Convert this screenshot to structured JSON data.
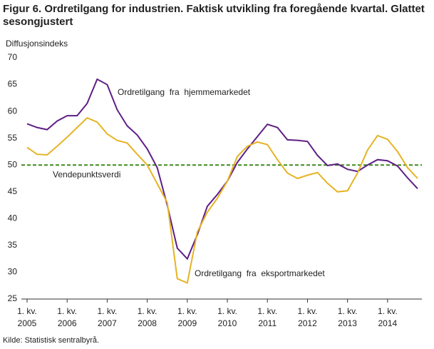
{
  "chart_data": {
    "type": "line",
    "title": "Figur 6. Ordretilgang for industrien. Faktisk utvikling fra foregående kvartal. Glattet sesongjustert",
    "y_label": "Diffusjonsindeks",
    "source": "Kilde: Statistisk sentralbyrå.",
    "categories": [
      "1. kv.\n2005",
      null,
      null,
      null,
      "1. kv.\n2006",
      null,
      null,
      null,
      "1. kv.\n2007",
      null,
      null,
      null,
      "1. kv.\n2008",
      null,
      null,
      null,
      "1. kv.\n2009",
      null,
      null,
      null,
      "1. kv.\n2010",
      null,
      null,
      null,
      "1. kv.\n2011",
      null,
      null,
      null,
      "1. kv.\n2012",
      null,
      null,
      null,
      "1. kv.\n2013",
      null,
      null,
      null,
      "1. kv.\n2014",
      null,
      null,
      null
    ],
    "series": [
      {
        "name": "Ordretilgang  fra  hjemmemarkedet",
        "color": "#5e1f86",
        "values": [
          57.7,
          57.0,
          56.6,
          58.2,
          59.2,
          59.2,
          61.5,
          66.0,
          65.0,
          60.3,
          57.3,
          55.6,
          53.0,
          49.5,
          42.5,
          34.5,
          32.5,
          37.0,
          42.3,
          44.5,
          47.0,
          50.5,
          53.0,
          55.3,
          57.6,
          57.0,
          54.7,
          54.6,
          54.4,
          51.8,
          49.9,
          50.2,
          49.2,
          48.8,
          50.0,
          51.0,
          50.8,
          49.8,
          47.6,
          45.6
        ]
      },
      {
        "name": "Ordretilgang  fra  eksportmarkedet",
        "color": "#e6b324",
        "values": [
          53.3,
          52.0,
          51.9,
          53.5,
          55.2,
          57.0,
          58.8,
          58.0,
          55.8,
          54.6,
          54.1,
          52.0,
          50.0,
          46.5,
          43.0,
          28.8,
          28.0,
          37.5,
          41.2,
          43.8,
          47.0,
          51.6,
          53.5,
          54.3,
          53.8,
          51.0,
          48.5,
          47.5,
          48.1,
          48.6,
          46.6,
          45.0,
          45.2,
          48.5,
          52.8,
          55.5,
          54.8,
          52.5,
          49.5,
          47.5
        ]
      }
    ],
    "reference_line": {
      "value": 50,
      "label": "Vendepunktsverdi",
      "color": "#3f8a1c"
    },
    "ylim": [
      25,
      70
    ],
    "yticks": [
      25,
      30,
      35,
      40,
      45,
      50,
      55,
      60,
      65,
      70
    ],
    "grid": false
  }
}
